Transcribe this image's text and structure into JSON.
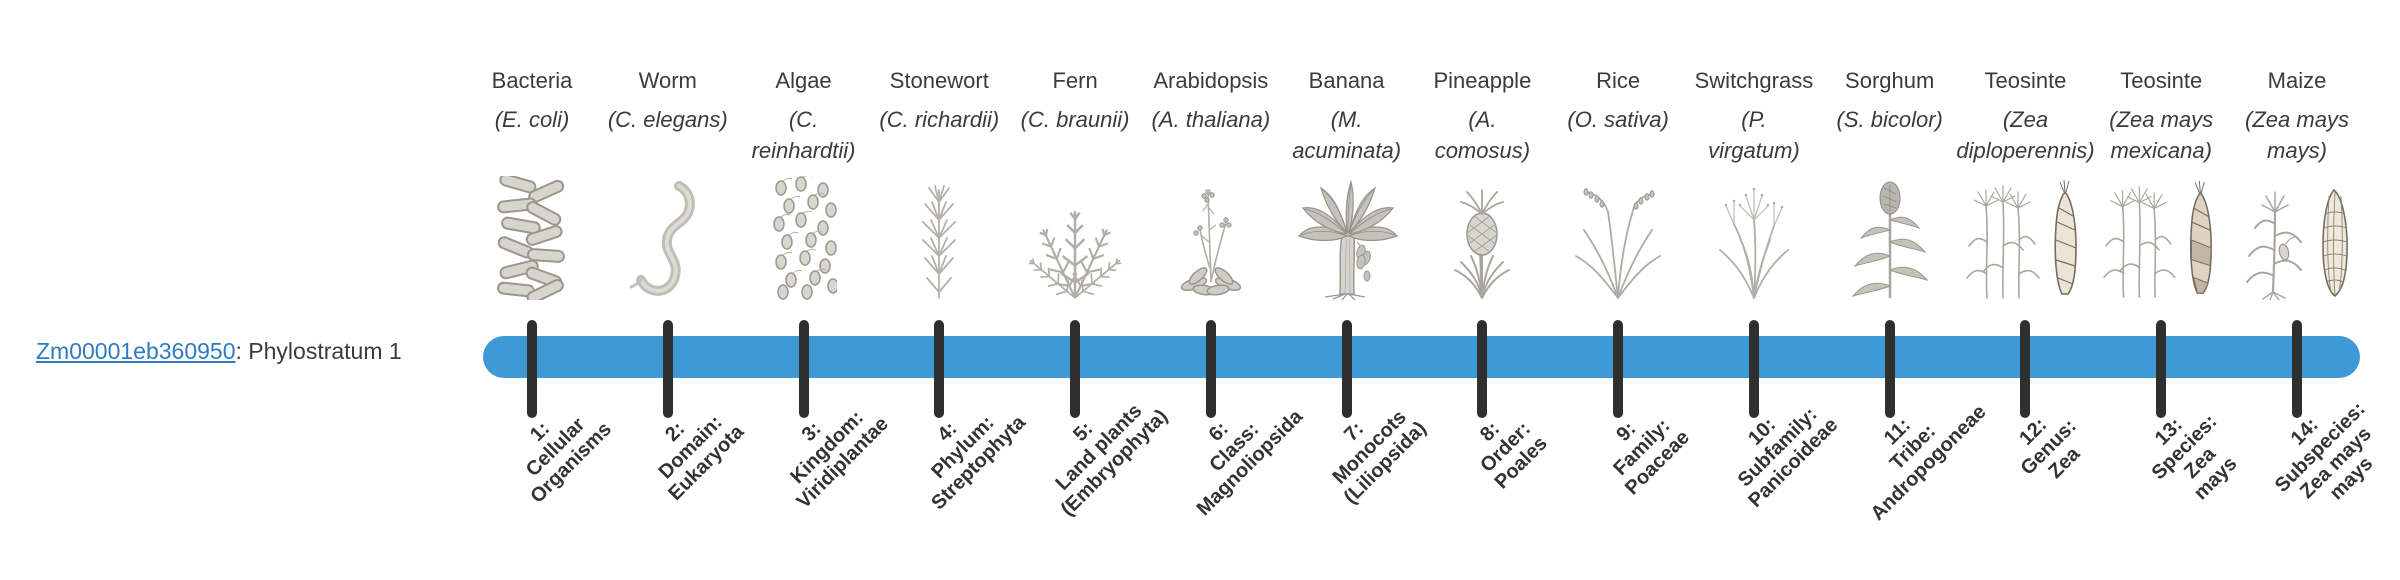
{
  "gene": {
    "id": "Zm00001eb360950",
    "suffix": ": Phylostratum 1"
  },
  "timeline": {
    "bar_color": "#3E9AD5",
    "tick_color": "#2F2F2F",
    "link_color": "#2E7CBF",
    "text_color": "#3B3B3B"
  },
  "organisms": [
    {
      "name": "Bacteria",
      "species_lines": [
        "(E. coli)"
      ],
      "icon": "bacteria-icon"
    },
    {
      "name": "Worm",
      "species_lines": [
        "(C. elegans)"
      ],
      "icon": "worm-icon"
    },
    {
      "name": "Algae",
      "species_lines": [
        "(C.",
        "reinhardtii)"
      ],
      "icon": "algae-icon"
    },
    {
      "name": "Stonewort",
      "species_lines": [
        "(C. richardii)"
      ],
      "icon": "stonewort-icon"
    },
    {
      "name": "Fern",
      "species_lines": [
        "(C. braunii)"
      ],
      "icon": "fern-icon"
    },
    {
      "name": "Arabidopsis",
      "species_lines": [
        "(A. thaliana)"
      ],
      "icon": "arabidopsis-icon"
    },
    {
      "name": "Banana",
      "species_lines": [
        "(M.",
        "acuminata)"
      ],
      "icon": "banana-icon"
    },
    {
      "name": "Pineapple",
      "species_lines": [
        "(A.",
        "comosus)"
      ],
      "icon": "pineapple-icon"
    },
    {
      "name": "Rice",
      "species_lines": [
        "(O. sativa)"
      ],
      "icon": "rice-icon"
    },
    {
      "name": "Switchgrass",
      "species_lines": [
        "(P.",
        "virgatum)"
      ],
      "icon": "switchgrass-icon"
    },
    {
      "name": "Sorghum",
      "species_lines": [
        "(S. bicolor)"
      ],
      "icon": "sorghum-icon"
    },
    {
      "name": "Teosinte",
      "species_lines": [
        "(Zea",
        "diploperennis)"
      ],
      "icon": "teosinte-diploperennis-icon"
    },
    {
      "name": "Teosinte",
      "species_lines": [
        "(Zea mays",
        "mexicana)"
      ],
      "icon": "teosinte-mexicana-icon"
    },
    {
      "name": "Maize",
      "species_lines": [
        "(Zea mays",
        "mays)"
      ],
      "icon": "maize-icon"
    }
  ],
  "phylostrata": [
    [
      "1:",
      "Cellular",
      "Organisms"
    ],
    [
      "2:",
      "Domain:",
      "Eukaryota"
    ],
    [
      "3:",
      "Kingdom:",
      "Viridiplantae"
    ],
    [
      "4:",
      "Phylum:",
      "Streptophyta"
    ],
    [
      "5:",
      "Land plants",
      "(Embryophyta)"
    ],
    [
      "6:",
      "Class:",
      "Magnoliopsida"
    ],
    [
      "7:",
      "Monocots",
      "(Liliopsida)"
    ],
    [
      "8:",
      "Order:",
      "Poales"
    ],
    [
      "9:",
      "Family:",
      "Poaceae"
    ],
    [
      "10:",
      "Subfamily:",
      "Panicoideae"
    ],
    [
      "11:",
      "Tribe:",
      "Andropogoneae"
    ],
    [
      "12:",
      "Genus:",
      "Zea"
    ],
    [
      "13:",
      "Species:",
      "Zea",
      "mays"
    ],
    [
      "14:",
      "Subspecies:",
      "Zea mays",
      "mays"
    ]
  ]
}
